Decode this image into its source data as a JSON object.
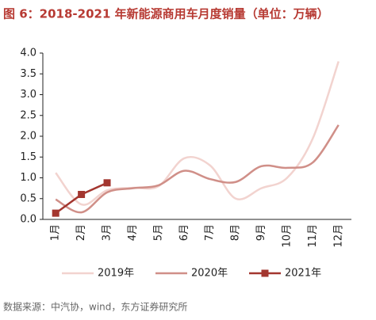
{
  "chart_data": {
    "type": "line",
    "title": "图 6：2018-2021 年新能源商用车月度销量（单位：万辆）",
    "source": "数据来源：中汽协，wind，东方证券研究所",
    "categories": [
      "1月",
      "2月",
      "3月",
      "4月",
      "5月",
      "6月",
      "7月",
      "8月",
      "9月",
      "10月",
      "11月",
      "12月"
    ],
    "series": [
      {
        "name": "2019年",
        "color": "#f2d3cf",
        "smooth": true,
        "marker": false,
        "values": [
          1.12,
          0.36,
          0.7,
          0.76,
          0.8,
          1.47,
          1.3,
          0.5,
          0.75,
          1.0,
          1.95,
          3.8
        ]
      },
      {
        "name": "2020年",
        "color": "#d08f88",
        "smooth": true,
        "marker": false,
        "values": [
          0.48,
          0.17,
          0.65,
          0.75,
          0.82,
          1.17,
          0.97,
          0.9,
          1.28,
          1.24,
          1.37,
          2.27
        ]
      },
      {
        "name": "2021年",
        "color": "#a3362f",
        "smooth": false,
        "marker": true,
        "values": [
          0.15,
          0.6,
          0.88,
          null,
          null,
          null,
          null,
          null,
          null,
          null,
          null,
          null
        ]
      }
    ],
    "ylim": [
      0,
      4
    ],
    "yticks": [
      {
        "value": 0,
        "label": "0.0"
      },
      0.5,
      {
        "value": 1,
        "label": "1.0"
      },
      1.5,
      {
        "value": 2,
        "label": "2.0"
      },
      2.5,
      {
        "value": 3,
        "label": "3.0"
      },
      3.5,
      {
        "value": 4,
        "label": "4.0"
      }
    ],
    "grid": false,
    "legend": "bottom"
  }
}
